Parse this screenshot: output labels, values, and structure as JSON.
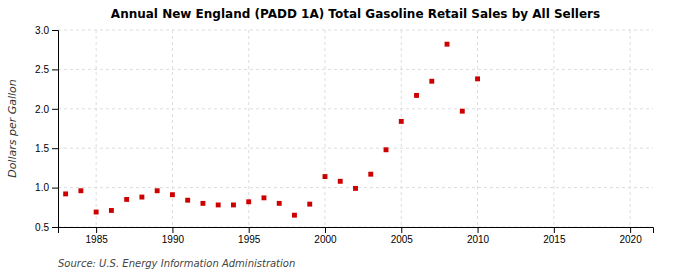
{
  "chart_data": {
    "type": "scatter",
    "title": "Annual New England (PADD 1A) Total Gasoline Retail Sales by All Sellers",
    "ylabel": "Dollars per Gallon",
    "source": "Source: U.S. Energy Information Administration",
    "x": [
      1983,
      1984,
      1985,
      1986,
      1987,
      1988,
      1989,
      1990,
      1991,
      1992,
      1993,
      1994,
      1995,
      1996,
      1997,
      1998,
      1999,
      2000,
      2001,
      2002,
      2003,
      2004,
      2005,
      2006,
      2007,
      2008,
      2009,
      2010
    ],
    "values": [
      0.92,
      0.96,
      0.69,
      0.71,
      0.85,
      0.88,
      0.96,
      0.91,
      0.84,
      0.8,
      0.78,
      0.78,
      0.82,
      0.87,
      0.8,
      0.65,
      0.79,
      1.14,
      1.08,
      0.99,
      1.17,
      1.48,
      1.84,
      2.17,
      2.35,
      2.82,
      1.97,
      2.38
    ],
    "color": "#cc0000",
    "marker": "square",
    "grid": true,
    "xlim": [
      1982.5,
      2021.5
    ],
    "ylim": [
      0.5,
      3.0
    ],
    "xticks": [
      1985,
      1990,
      1995,
      2000,
      2005,
      2010,
      2015,
      2020
    ],
    "yticks": [
      0.5,
      {
        "value": 1.0,
        "label": "1.0"
      },
      1.5,
      {
        "value": 2.0,
        "label": "2.0"
      },
      2.5,
      {
        "value": 3.0,
        "label": "3.0"
      }
    ]
  }
}
